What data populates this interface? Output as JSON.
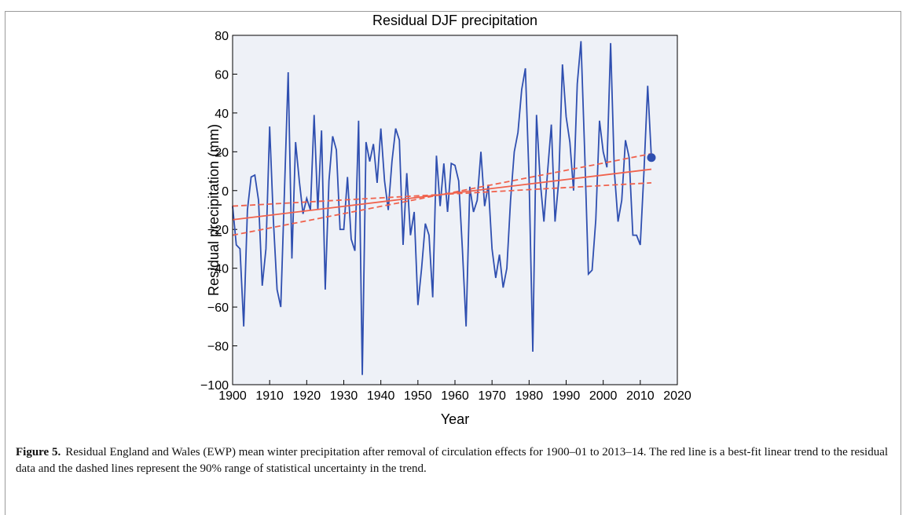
{
  "chart_data": {
    "type": "line",
    "title": "Residual DJF precipitation",
    "x_label": "Year",
    "y_label": "Residual precipitation (mm)",
    "x": [
      1900,
      1901,
      1902,
      1903,
      1904,
      1905,
      1906,
      1907,
      1908,
      1909,
      1910,
      1911,
      1912,
      1913,
      1914,
      1915,
      1916,
      1917,
      1918,
      1919,
      1920,
      1921,
      1922,
      1923,
      1924,
      1925,
      1926,
      1927,
      1928,
      1929,
      1930,
      1931,
      1932,
      1933,
      1934,
      1935,
      1936,
      1937,
      1938,
      1939,
      1940,
      1941,
      1942,
      1943,
      1944,
      1945,
      1946,
      1947,
      1948,
      1949,
      1950,
      1951,
      1952,
      1953,
      1954,
      1955,
      1956,
      1957,
      1958,
      1959,
      1960,
      1961,
      1962,
      1963,
      1964,
      1965,
      1966,
      1967,
      1968,
      1969,
      1970,
      1971,
      1972,
      1973,
      1974,
      1975,
      1976,
      1977,
      1978,
      1979,
      1980,
      1981,
      1982,
      1983,
      1984,
      1985,
      1986,
      1987,
      1988,
      1989,
      1990,
      1991,
      1992,
      1993,
      1994,
      1995,
      1996,
      1997,
      1998,
      1999,
      2000,
      2001,
      2002,
      2003,
      2004,
      2005,
      2006,
      2007,
      2008,
      2009,
      2010,
      2011,
      2012,
      2013
    ],
    "series": [
      {
        "color": "#2f4fb0",
        "values": [
          -8,
          -28,
          -30,
          -70,
          -10,
          7,
          8,
          -5,
          -49,
          -30,
          33,
          -15,
          -51,
          -60,
          0,
          61,
          -35,
          25,
          5,
          -12,
          -4,
          -10,
          39,
          -10,
          31,
          -51,
          5,
          28,
          21,
          -20,
          -20,
          7,
          -25,
          -31,
          36,
          -95,
          25,
          15,
          24,
          4,
          32,
          5,
          -10,
          15,
          32,
          26,
          -28,
          9,
          -23,
          -11,
          -59,
          -40,
          -17,
          -23,
          -55,
          18,
          -8,
          14,
          -11,
          14,
          13,
          5,
          -30,
          -70,
          2,
          -11,
          -5,
          20,
          -8,
          3,
          -30,
          -45,
          -33,
          -50,
          -40,
          -5,
          20,
          30,
          52,
          63,
          6,
          -83,
          39,
          5,
          -16,
          10,
          34,
          -16,
          5,
          65,
          38,
          25,
          0,
          55,
          77,
          20,
          -43,
          -41,
          -15,
          36,
          20,
          12,
          76,
          10,
          -16,
          -5,
          26,
          17,
          -23,
          -23,
          -28,
          10,
          54,
          17
        ]
      },
      {
        "color": "#f0624d",
        "x": [
          1900,
          2013
        ],
        "values": [
          -15,
          11
        ]
      },
      {
        "color": "#f0624d",
        "x": [
          1900,
          2013
        ],
        "values": [
          -8,
          4
        ],
        "dashed": true
      },
      {
        "color": "#f0624d",
        "x": [
          1900,
          2013
        ],
        "values": [
          -23,
          19
        ],
        "dashed": true
      }
    ],
    "highlight_point": {
      "x": 2013,
      "value": 17,
      "color": "#2f4fb0"
    },
    "xlim": [
      1900,
      2020
    ],
    "xticks": [
      1900,
      1910,
      1920,
      1930,
      1940,
      1950,
      1960,
      1970,
      1980,
      1990,
      2000,
      2010,
      2020
    ],
    "ylim": [
      -100,
      80
    ],
    "yticks": [
      {
        "value": -100,
        "label": "−100"
      },
      {
        "value": -80,
        "label": "−80"
      },
      {
        "value": -60,
        "label": "−60"
      },
      {
        "value": -40,
        "label": "−40"
      },
      {
        "value": -20,
        "label": "−20"
      },
      0,
      20,
      40,
      60,
      80
    ],
    "background": "#eef1f7"
  },
  "caption": {
    "label": "Figure 5.",
    "text": "Residual England and Wales (EWP) mean winter precipitation after removal of circulation effects for 1900–01 to 2013–14. The red line is a best-fit linear trend to the residual data and the dashed lines represent the 90% range of statistical uncertainty in the trend."
  }
}
